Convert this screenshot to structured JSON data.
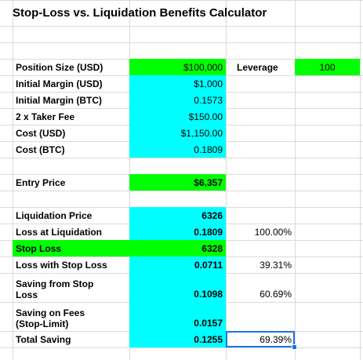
{
  "title": "Stop-Loss vs. Liquidation Benefits Calculator",
  "rows": [
    {
      "label": "Position Size (USD)",
      "value": "$100,000",
      "extra_label": "Leverage",
      "extra_value": "100"
    },
    {
      "label": "Initial Margin (USD)",
      "value": "$1,000"
    },
    {
      "label": "Initial Margin (BTC)",
      "value": "0.1573"
    },
    {
      "label": "2 x Taker Fee",
      "value": "$150.00"
    },
    {
      "label": "Cost (USD)",
      "value": "$1,150.00"
    },
    {
      "label": "Cost (BTC)",
      "value": "0.1809"
    },
    {
      "label": "Entry Price",
      "value": "$6,357"
    },
    {
      "label": "Liquidation Price",
      "value": "6326"
    },
    {
      "label": "Loss at Liquidation",
      "value": "0.1809",
      "pct": "100.00%"
    },
    {
      "label": "Stop Loss",
      "value": "6328"
    },
    {
      "label": "Loss with Stop Loss",
      "value": "0.0711",
      "pct": "39.31%"
    },
    {
      "label": "Saving from Stop Loss",
      "value": "0.1098",
      "pct": "60.69%"
    },
    {
      "label": "Saving on Fees (Stop-Limit)",
      "value": "0.0157"
    },
    {
      "label": "Total Saving",
      "value": "0.1255",
      "pct": "69.39%"
    }
  ],
  "colors": {
    "cyan": "#00ffff",
    "green": "#00ff00",
    "grid": "#dadada",
    "selection": "#1a73e8"
  }
}
